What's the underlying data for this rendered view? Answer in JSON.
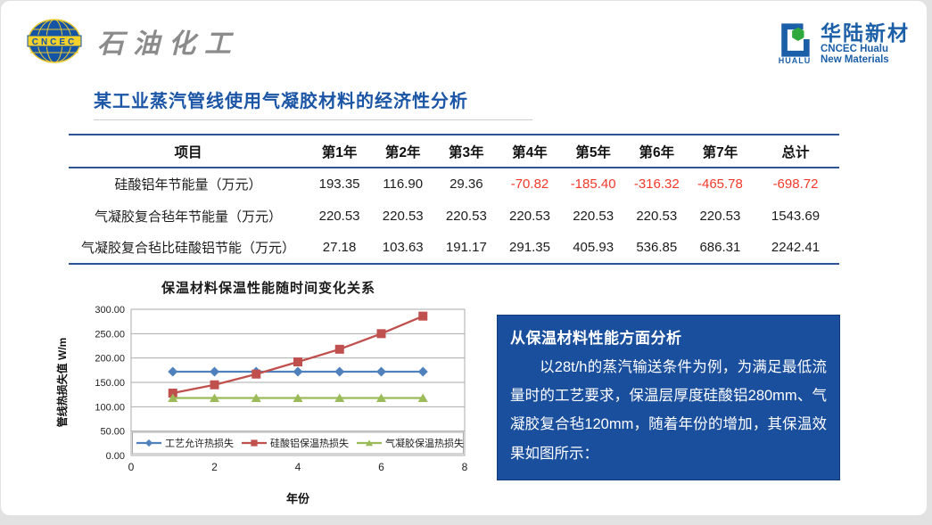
{
  "header": {
    "left_logo": {
      "badge": "CNCEC",
      "company": "石油化工"
    },
    "right_logo": {
      "icon_caption": "HUALU",
      "name_cn": "华陆新材",
      "name_en_line1": "CNCEC Hualu",
      "name_en_line2": "New Materials"
    }
  },
  "title": "某工业蒸汽管线使用气凝胶材料的经济性分析",
  "table": {
    "columns": [
      "项目",
      "第1年",
      "第2年",
      "第3年",
      "第4年",
      "第5年",
      "第6年",
      "第7年",
      "总计"
    ],
    "rows": [
      {
        "label": "硅酸铝年节能量（万元）",
        "values": [
          "193.35",
          "116.90",
          "29.36",
          "-70.82",
          "-185.40",
          "-316.32",
          "-465.78",
          "-698.72"
        ]
      },
      {
        "label": "气凝胶复合毡年节能量（万元）",
        "values": [
          "220.53",
          "220.53",
          "220.53",
          "220.53",
          "220.53",
          "220.53",
          "220.53",
          "1543.69"
        ]
      },
      {
        "label": "气凝胶复合毡比硅酸铝节能（万元）",
        "values": [
          "27.18",
          "103.63",
          "191.17",
          "291.35",
          "405.93",
          "536.85",
          "686.31",
          "2242.41"
        ]
      }
    ]
  },
  "chart_data": {
    "type": "line",
    "title": "保温材料保温性能随时间变化关系",
    "xlabel": "年份",
    "ylabel": "管线热损失值 W/m",
    "x": [
      1,
      2,
      3,
      4,
      5,
      6,
      7
    ],
    "xlim": [
      0,
      8
    ],
    "x_ticks": [
      0,
      2,
      4,
      6,
      8
    ],
    "ylim": [
      0,
      300
    ],
    "y_tick_step": 50,
    "grid": true,
    "legend_position": "bottom-inside",
    "series": [
      {
        "name": "工艺允许热损失",
        "marker": "diamond",
        "color": "#4F81BD",
        "values": [
          172,
          172,
          172,
          172,
          172,
          172,
          172
        ]
      },
      {
        "name": "硅酸铝保温热损失",
        "marker": "square",
        "color": "#C0504D",
        "values": [
          128,
          145,
          167,
          192,
          218,
          250,
          286
        ]
      },
      {
        "name": "气凝胶保温热损失",
        "marker": "triangle",
        "color": "#9BBB59",
        "values": [
          118,
          118,
          118,
          118,
          118,
          118,
          118
        ]
      }
    ]
  },
  "analysis_box": {
    "title": "从保温材料性能方面分析",
    "body": "以28t/h的蒸汽输送条件为例，为满足最低流量时的工艺要求，保温层厚度硅酸铝280mm、气凝胶复合毡120mm，随着年份的增加，其保温效果如图所示："
  },
  "colors": {
    "title_blue": "#1B55A5",
    "table_border_blue": "#2F5496",
    "negative_red": "#F3392B",
    "box_blue": "#1A4F9E",
    "logo_blue": "#1553A4",
    "logo_yellow": "#F5D12C",
    "hualu_blue": "#1B5FA8",
    "hualu_green": "#2FA83C",
    "series_blue": "#4F81BD",
    "series_red": "#C0504D",
    "series_green": "#9BBB59"
  }
}
